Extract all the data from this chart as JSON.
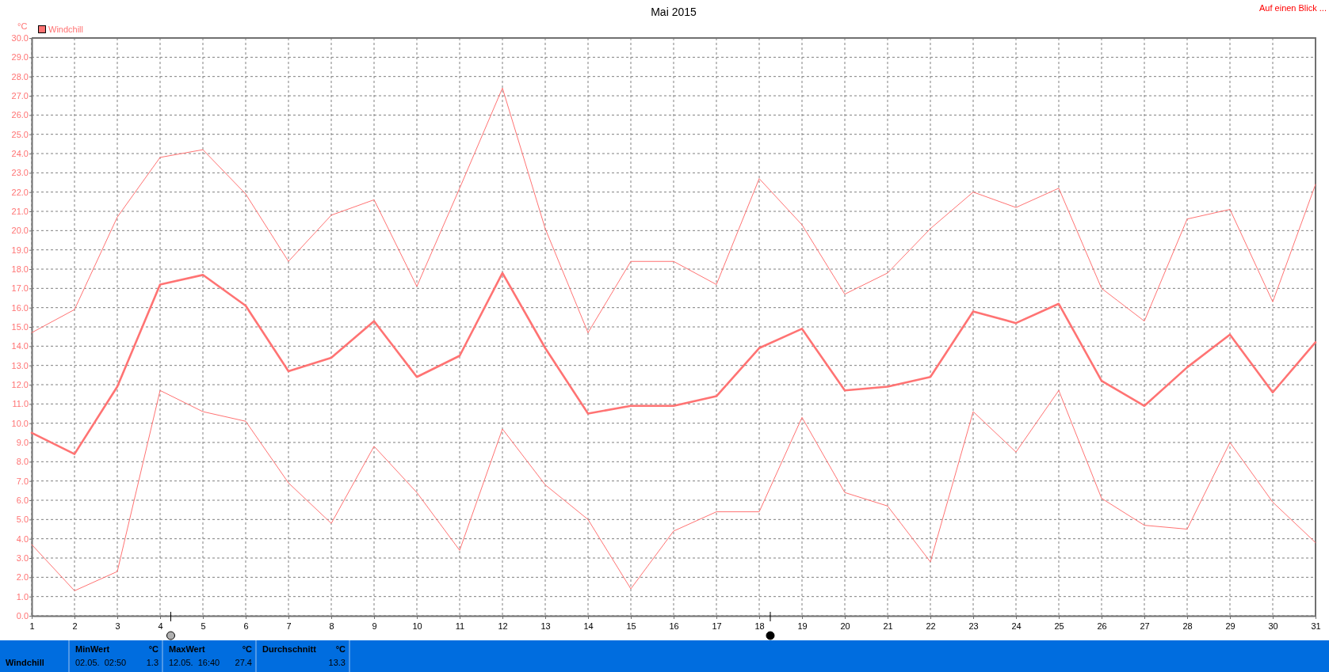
{
  "chart_data": {
    "type": "line",
    "title": "Mai 2015",
    "ylabel": "°C",
    "x": [
      1,
      2,
      3,
      4,
      5,
      6,
      7,
      8,
      9,
      10,
      11,
      12,
      13,
      14,
      15,
      16,
      17,
      18,
      19,
      20,
      21,
      22,
      23,
      24,
      25,
      26,
      27,
      28,
      29,
      30,
      31
    ],
    "series": [
      {
        "color": "#ff7373",
        "values": [
          14.7,
          15.9,
          20.7,
          23.8,
          24.2,
          21.9,
          18.4,
          20.8,
          21.6,
          17.1,
          22.2,
          27.4,
          20.1,
          14.7,
          18.4,
          18.4,
          17.2,
          22.7,
          20.3,
          16.7,
          17.8,
          20.1,
          22.0,
          21.2,
          22.2,
          17.0,
          15.3,
          20.6,
          21.1,
          16.3,
          22.4
        ]
      },
      {
        "name": "Windchill",
        "color": "#ff7373",
        "values": [
          9.5,
          8.4,
          11.9,
          17.2,
          17.7,
          16.1,
          12.7,
          13.4,
          15.3,
          12.4,
          13.5,
          17.8,
          13.9,
          10.5,
          10.9,
          10.9,
          11.4,
          13.9,
          14.9,
          11.7,
          11.9,
          12.4,
          15.8,
          15.2,
          16.2,
          12.2,
          10.9,
          12.9,
          14.6,
          11.6,
          14.2
        ]
      },
      {
        "color": "#ff7373",
        "values": [
          3.7,
          1.3,
          2.3,
          11.7,
          10.6,
          10.1,
          6.9,
          4.8,
          8.8,
          6.4,
          3.4,
          9.7,
          6.8,
          5.0,
          1.4,
          4.4,
          5.4,
          5.4,
          10.3,
          6.4,
          5.7,
          2.8,
          10.6,
          8.5,
          11.7,
          6.1,
          4.7,
          4.5,
          9.0,
          5.9,
          3.8
        ]
      }
    ],
    "xlim": [
      1,
      31
    ],
    "xticks": [
      1,
      2,
      3,
      4,
      5,
      6,
      7,
      8,
      9,
      10,
      11,
      12,
      13,
      14,
      15,
      16,
      17,
      18,
      19,
      20,
      21,
      22,
      23,
      24,
      25,
      26,
      27,
      28,
      29,
      30,
      31
    ],
    "ylim": [
      0,
      30
    ],
    "yticks": [
      {
        "value": 0,
        "label": "0.0"
      },
      {
        "value": 1,
        "label": "1.0"
      },
      {
        "value": 2,
        "label": "2.0"
      },
      {
        "value": 3,
        "label": "3.0"
      },
      {
        "value": 4,
        "label": "4.0"
      },
      {
        "value": 5,
        "label": "5.0"
      },
      {
        "value": 6,
        "label": "6.0"
      },
      {
        "value": 7,
        "label": "7.0"
      },
      {
        "value": 8,
        "label": "8.0"
      },
      {
        "value": 9,
        "label": "9.0"
      },
      {
        "value": 10,
        "label": "10.0"
      },
      {
        "value": 11,
        "label": "11.0"
      },
      {
        "value": 12,
        "label": "12.0"
      },
      {
        "value": 13,
        "label": "13.0"
      },
      {
        "value": 14,
        "label": "14.0"
      },
      {
        "value": 15,
        "label": "15.0"
      },
      {
        "value": 16,
        "label": "16.0"
      },
      {
        "value": 17,
        "label": "17.0"
      },
      {
        "value": 18,
        "label": "18.0"
      },
      {
        "value": 19,
        "label": "19.0"
      },
      {
        "value": 20,
        "label": "20.0"
      },
      {
        "value": 21,
        "label": "21.0"
      },
      {
        "value": 22,
        "label": "22.0"
      },
      {
        "value": 23,
        "label": "23.0"
      },
      {
        "value": 24,
        "label": "24.0"
      },
      {
        "value": 25,
        "label": "25.0"
      },
      {
        "value": 26,
        "label": "26.0"
      },
      {
        "value": 27,
        "label": "27.0"
      },
      {
        "value": 28,
        "label": "28.0"
      },
      {
        "value": 29,
        "label": "29.0"
      },
      {
        "value": 30,
        "label": "30.0"
      }
    ],
    "grid": true,
    "legend": "top left",
    "line_style": "solid",
    "annotations": [
      "Auf einen Blick ...",
      "Windchill",
      "MinWert",
      "°C",
      "02.05.  02:50",
      "1.3",
      "MaxWert",
      "°C",
      "12.05.  16:40",
      "27.4",
      "Durchschnitt",
      "°C",
      "13.3"
    ]
  }
}
